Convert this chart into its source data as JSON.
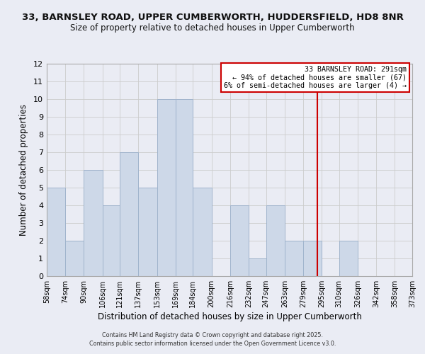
{
  "title1": "33, BARNSLEY ROAD, UPPER CUMBERWORTH, HUDDERSFIELD, HD8 8NR",
  "title2": "Size of property relative to detached houses in Upper Cumberworth",
  "xlabel": "Distribution of detached houses by size in Upper Cumberworth",
  "ylabel": "Number of detached properties",
  "bin_edges": [
    58,
    74,
    90,
    106,
    121,
    137,
    153,
    169,
    184,
    200,
    216,
    232,
    247,
    263,
    279,
    295,
    310,
    326,
    342,
    358,
    373
  ],
  "counts": [
    5,
    2,
    6,
    4,
    7,
    5,
    10,
    10,
    5,
    0,
    4,
    1,
    4,
    2,
    2,
    0,
    2,
    0,
    0,
    0
  ],
  "bar_facecolor": "#cdd8e8",
  "bar_edgecolor": "#a0b4cc",
  "grid_color": "#cccccc",
  "vline_x": 291,
  "vline_color": "#cc0000",
  "annotation_line1": "33 BARNSLEY ROAD: 291sqm",
  "annotation_line2": "← 94% of detached houses are smaller (67)",
  "annotation_line3": "6% of semi-detached houses are larger (4) →",
  "annotation_box_facecolor": "#ffffff",
  "annotation_box_edgecolor": "#cc0000",
  "ylim": [
    0,
    12
  ],
  "yticks": [
    0,
    1,
    2,
    3,
    4,
    5,
    6,
    7,
    8,
    9,
    10,
    11,
    12
  ],
  "xtick_labels": [
    "58sqm",
    "74sqm",
    "90sqm",
    "106sqm",
    "121sqm",
    "137sqm",
    "153sqm",
    "169sqm",
    "184sqm",
    "200sqm",
    "216sqm",
    "232sqm",
    "247sqm",
    "263sqm",
    "279sqm",
    "295sqm",
    "310sqm",
    "326sqm",
    "342sqm",
    "358sqm",
    "373sqm"
  ],
  "footnote1": "Contains HM Land Registry data © Crown copyright and database right 2025.",
  "footnote2": "Contains public sector information licensed under the Open Government Licence v3.0.",
  "bg_color": "#eaecf4"
}
